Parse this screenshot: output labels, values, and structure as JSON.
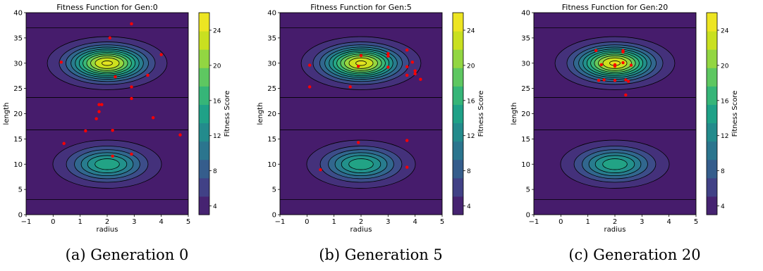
{
  "colorbar_label": "Fitness Score",
  "colorbar_ticks": [
    4,
    8,
    12,
    16,
    20,
    24
  ],
  "colormap": [
    "#471365",
    "#433e85",
    "#32648e",
    "#25838e",
    "#1fa187",
    "#3fbc73",
    "#84d44b",
    "#d0e11c",
    "#fde725"
  ],
  "contour_line_color": "#000000",
  "point_color": "#ff0000",
  "chart_data": [
    {
      "type": "contour",
      "title": "Fitness Function for Gen:0",
      "caption": "(a) Generation 0",
      "xlabel": "radius",
      "ylabel": "length",
      "xlim": [
        -1,
        5
      ],
      "ylim": [
        0,
        40
      ],
      "xticks": [
        -1,
        0,
        1,
        2,
        3,
        4,
        5
      ],
      "yticks": [
        0,
        5,
        10,
        15,
        20,
        25,
        30,
        35,
        40
      ],
      "clim": [
        3,
        26
      ],
      "points": [
        [
          2.9,
          37.8
        ],
        [
          2.1,
          35.0
        ],
        [
          4.0,
          31.7
        ],
        [
          0.3,
          30.2
        ],
        [
          2.3,
          27.3
        ],
        [
          3.5,
          27.6
        ],
        [
          2.9,
          25.3
        ],
        [
          2.9,
          23.0
        ],
        [
          1.7,
          21.8
        ],
        [
          1.8,
          21.8
        ],
        [
          1.7,
          20.4
        ],
        [
          1.6,
          19.0
        ],
        [
          3.7,
          19.2
        ],
        [
          1.2,
          16.6
        ],
        [
          2.2,
          16.7
        ],
        [
          4.7,
          15.8
        ],
        [
          0.4,
          14.1
        ],
        [
          2.9,
          12.0
        ],
        [
          2.2,
          11.6
        ]
      ]
    },
    {
      "type": "contour",
      "title": "Fitness Function for Gen:5",
      "caption": "(b) Generation 5",
      "xlabel": "radius",
      "ylabel": "length",
      "xlim": [
        -1,
        5
      ],
      "ylim": [
        0,
        40
      ],
      "xticks": [
        -1,
        0,
        1,
        2,
        3,
        4,
        5
      ],
      "yticks": [
        0,
        5,
        10,
        15,
        20,
        25,
        30,
        35,
        40
      ],
      "clim": [
        3,
        26
      ],
      "points": [
        [
          3.7,
          32.6
        ],
        [
          3.0,
          31.9
        ],
        [
          3.0,
          31.4
        ],
        [
          2.0,
          31.5
        ],
        [
          3.9,
          30.2
        ],
        [
          0.1,
          29.6
        ],
        [
          1.9,
          29.4
        ],
        [
          3.0,
          29.2
        ],
        [
          3.7,
          29.3
        ],
        [
          4.0,
          28.5
        ],
        [
          3.7,
          27.6
        ],
        [
          4.2,
          26.8
        ],
        [
          4.0,
          27.9
        ],
        [
          0.1,
          25.3
        ],
        [
          1.6,
          25.3
        ],
        [
          3.7,
          14.7
        ],
        [
          1.9,
          14.3
        ],
        [
          0.5,
          8.9
        ],
        [
          3.7,
          9.4
        ]
      ]
    },
    {
      "type": "contour",
      "title": "Fitness Function for Gen:20",
      "caption": "(c) Generation 20",
      "xlabel": "radius",
      "ylabel": "length",
      "xlim": [
        -1,
        5
      ],
      "ylim": [
        0,
        40
      ],
      "xticks": [
        -1,
        0,
        1,
        2,
        3,
        4,
        5
      ],
      "yticks": [
        0,
        5,
        10,
        15,
        20,
        25,
        30,
        35,
        40
      ],
      "clim": [
        3,
        26
      ],
      "points": [
        [
          1.3,
          32.5
        ],
        [
          2.3,
          32.5
        ],
        [
          2.3,
          32.2
        ],
        [
          1.5,
          29.7
        ],
        [
          2.0,
          29.7
        ],
        [
          2.0,
          29.4
        ],
        [
          2.6,
          29.6
        ],
        [
          2.3,
          30.1
        ],
        [
          1.4,
          26.6
        ],
        [
          1.6,
          26.7
        ],
        [
          2.0,
          26.6
        ],
        [
          2.4,
          26.7
        ],
        [
          2.5,
          26.4
        ],
        [
          2.4,
          23.7
        ]
      ]
    }
  ]
}
